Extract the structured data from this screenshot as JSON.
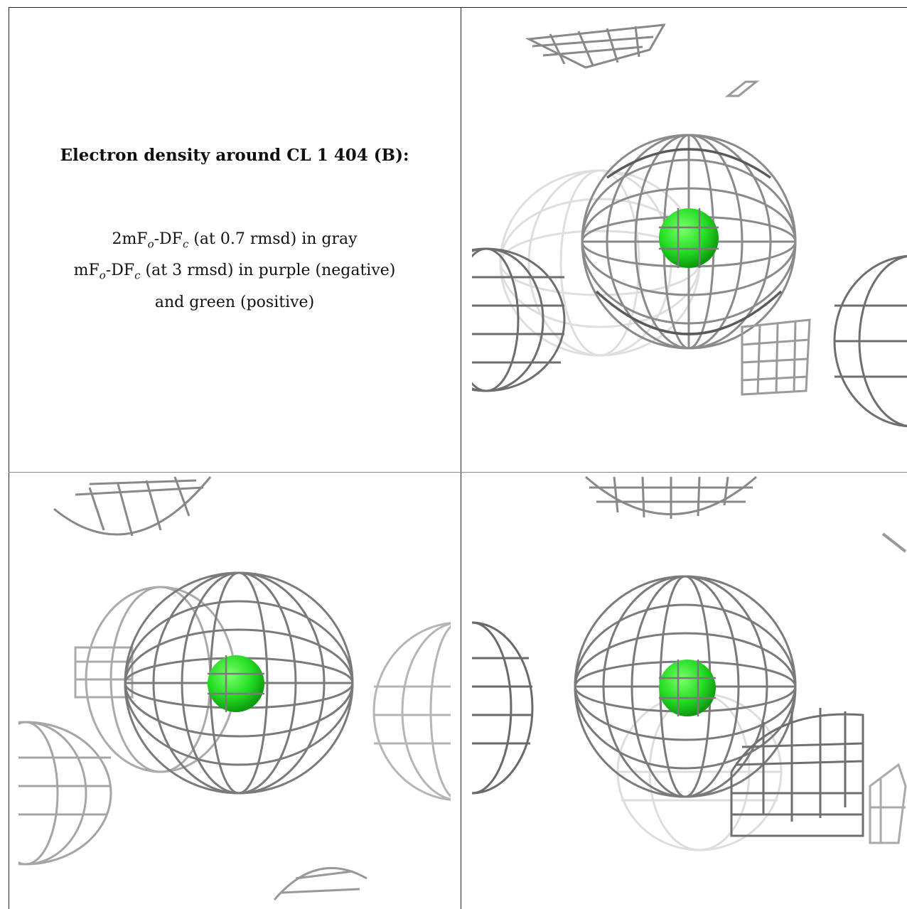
{
  "caption": {
    "title": "Electron density around CL 1 404 (B):",
    "line1_main": "2mF",
    "line1_sub1": "o",
    "line1_mid": "-DF",
    "line1_sub2": "c",
    "line1_rest": " (at 0.7 rmsd) in gray",
    "line2_main": "mF",
    "line2_sub1": "o",
    "line2_mid": "-DF",
    "line2_sub2": "c",
    "line2_rest": " (at 3 rmsd) in purple (negative)",
    "line3": "and green (positive)"
  },
  "colors": {
    "mesh_dark": "#555555",
    "mesh_mid": "#9a9a9a",
    "mesh_light": "#cfcfcf",
    "atom_green": "#22dd22",
    "border": "#222222"
  },
  "views": [
    "view-top-right",
    "view-bottom-left",
    "view-bottom-right"
  ]
}
